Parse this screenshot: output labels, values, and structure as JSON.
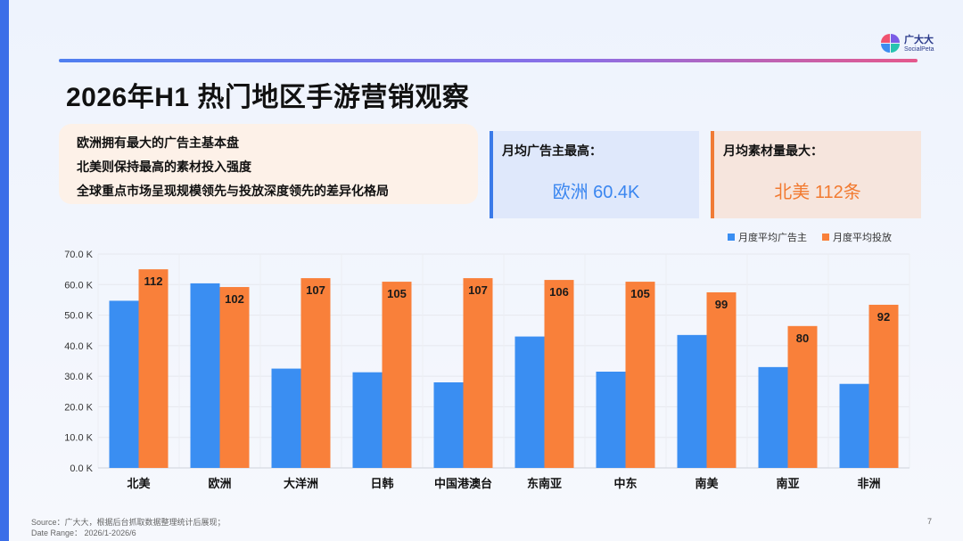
{
  "brand": {
    "name_cn": "广大大",
    "name_en": "SocialPeta"
  },
  "title": "2026年H1 热门地区手游营销观察",
  "summary": [
    "欧洲拥有最大的广告主基本盘",
    "北美则保持最高的素材投入强度",
    "全球重点市场呈现规模领先与投放深度领先的差异化格局"
  ],
  "stats": [
    {
      "label": "月均广告主最高：",
      "value": "欧洲 60.4K",
      "color": "#3a86f0"
    },
    {
      "label": "月均素材量最大：",
      "value": "北美 112条",
      "color": "#f27a30"
    }
  ],
  "chart_data": {
    "type": "bar",
    "categories": [
      "北美",
      "欧洲",
      "大洋洲",
      "日韩",
      "中国港澳台",
      "东南亚",
      "中东",
      "南美",
      "南亚",
      "非洲"
    ],
    "series": [
      {
        "name": "月度平均广告主",
        "color": "#3a8ef2",
        "values": [
          54.7,
          60.4,
          32.5,
          31.3,
          28.0,
          43.0,
          31.5,
          43.5,
          33.0,
          27.5
        ]
      },
      {
        "name": "月度平均投放",
        "color": "#f9803a",
        "values": [
          112,
          102,
          107,
          105,
          107,
          106,
          105,
          99,
          80,
          92
        ],
        "labels": [
          "112",
          "102",
          "107",
          "105",
          "107",
          "106",
          "105",
          "99",
          "80",
          "92"
        ]
      }
    ],
    "yticks": [
      "0.0 K",
      "10.0 K",
      "20.0 K",
      "30.0 K",
      "40.0 K",
      "50.0 K",
      "60.0 K",
      "70.0 K"
    ],
    "ylim": [
      0,
      70
    ],
    "legend_position": "top-right",
    "grid": true
  },
  "footer": {
    "source": "Source：广大大，根据后台抓取数据整理统计后展现；",
    "date_range": "Date Range： 2026/1-2026/6"
  },
  "page_number": "7"
}
